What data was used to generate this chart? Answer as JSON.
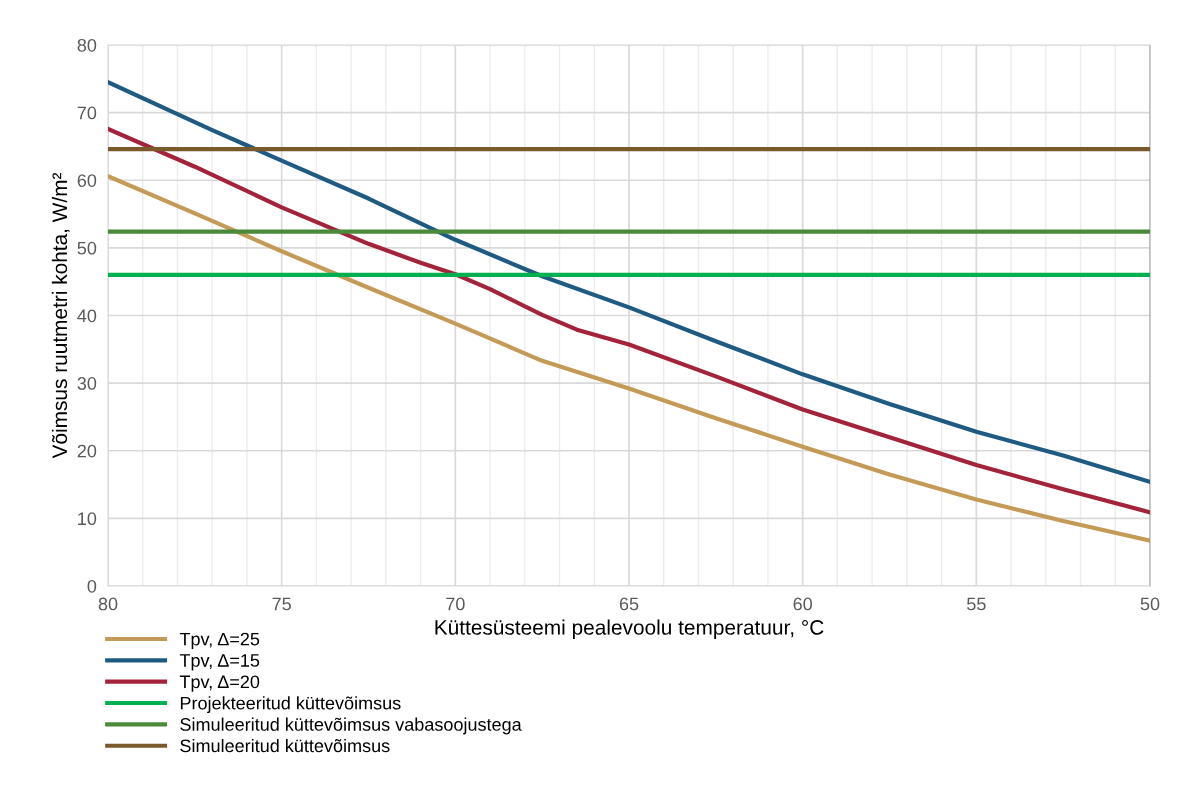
{
  "chart_data": {
    "type": "line",
    "xlabel": "Küttesüsteemi pealevoolu temperatuur, °C",
    "ylabel": "Võimsus ruutmetri kohta, W/m²",
    "xlim": [
      80,
      50
    ],
    "ylim": [
      0,
      80
    ],
    "xticks": [
      80,
      {
        "value": 79,
        "label": null
      },
      {
        "value": 78,
        "label": null
      },
      {
        "value": 77,
        "label": null
      },
      {
        "value": 76,
        "label": null
      },
      75,
      {
        "value": 74,
        "label": null
      },
      {
        "value": 73,
        "label": null
      },
      {
        "value": 72,
        "label": null
      },
      {
        "value": 71,
        "label": null
      },
      70,
      {
        "value": 69,
        "label": null
      },
      {
        "value": 68,
        "label": null
      },
      {
        "value": 67,
        "label": null
      },
      {
        "value": 66,
        "label": null
      },
      65,
      {
        "value": 64,
        "label": null
      },
      {
        "value": 63,
        "label": null
      },
      {
        "value": 62,
        "label": null
      },
      {
        "value": 61,
        "label": null
      },
      60,
      {
        "value": 59,
        "label": null
      },
      {
        "value": 58,
        "label": null
      },
      {
        "value": 57,
        "label": null
      },
      {
        "value": 56,
        "label": null
      },
      55,
      {
        "value": 54,
        "label": null
      },
      {
        "value": 53,
        "label": null
      },
      {
        "value": 52,
        "label": null
      },
      {
        "value": 51,
        "label": null
      },
      50
    ],
    "yticks": [
      0,
      10,
      20,
      30,
      40,
      50,
      60,
      70,
      80
    ],
    "grid": true,
    "legend": "bottom left",
    "marker": "none",
    "line_style": "solid",
    "series": [
      {
        "name": "Tpv, Δ=25",
        "color": "#c49a57",
        "x": [
          80,
          77.5,
          75,
          72.5,
          70,
          67.5,
          65,
          62.5,
          60,
          57.5,
          55,
          52.5,
          50
        ],
        "values": [
          60.6,
          55.1,
          49.5,
          44.1,
          38.8,
          33.3,
          29.2,
          24.8,
          20.6,
          16.5,
          12.8,
          9.6,
          6.7
        ]
      },
      {
        "name": "Tpv, Δ=15",
        "color": "#1f5a82",
        "x": [
          80,
          77,
          75,
          72.5,
          70,
          67.5,
          65,
          62.5,
          60,
          57.5,
          55,
          52.5,
          50
        ],
        "values": [
          74.5,
          67.4,
          62.9,
          57.3,
          51.2,
          45.8,
          41.2,
          36.2,
          31.3,
          26.9,
          22.8,
          19.3,
          15.4
        ]
      },
      {
        "name": "Tpv, Δ=20",
        "color": "#a3233a",
        "x": [
          80,
          77.5,
          75,
          72.5,
          71,
          70,
          69,
          67.5,
          66.5,
          65,
          62.5,
          60,
          57.5,
          55,
          52.5,
          50
        ],
        "values": [
          67.6,
          62.0,
          56.0,
          50.6,
          47.8,
          46.1,
          43.9,
          40.1,
          37.9,
          35.7,
          31.0,
          26.1,
          22.0,
          17.9,
          14.3,
          10.9
        ]
      },
      {
        "name": "Projekteeritud küttevõimsus",
        "color": "#00b050",
        "x": [
          80,
          50
        ],
        "values": [
          46.0,
          46.0
        ]
      },
      {
        "name": "Simuleeritud küttevõimsus vabasoojustega",
        "color": "#4a8a3a",
        "x": [
          80,
          50
        ],
        "values": [
          52.4,
          52.4
        ]
      },
      {
        "name": "Simuleeritud küttevõimsus",
        "color": "#7a5a2a",
        "x": [
          80,
          50
        ],
        "values": [
          64.6,
          64.6
        ]
      }
    ]
  }
}
